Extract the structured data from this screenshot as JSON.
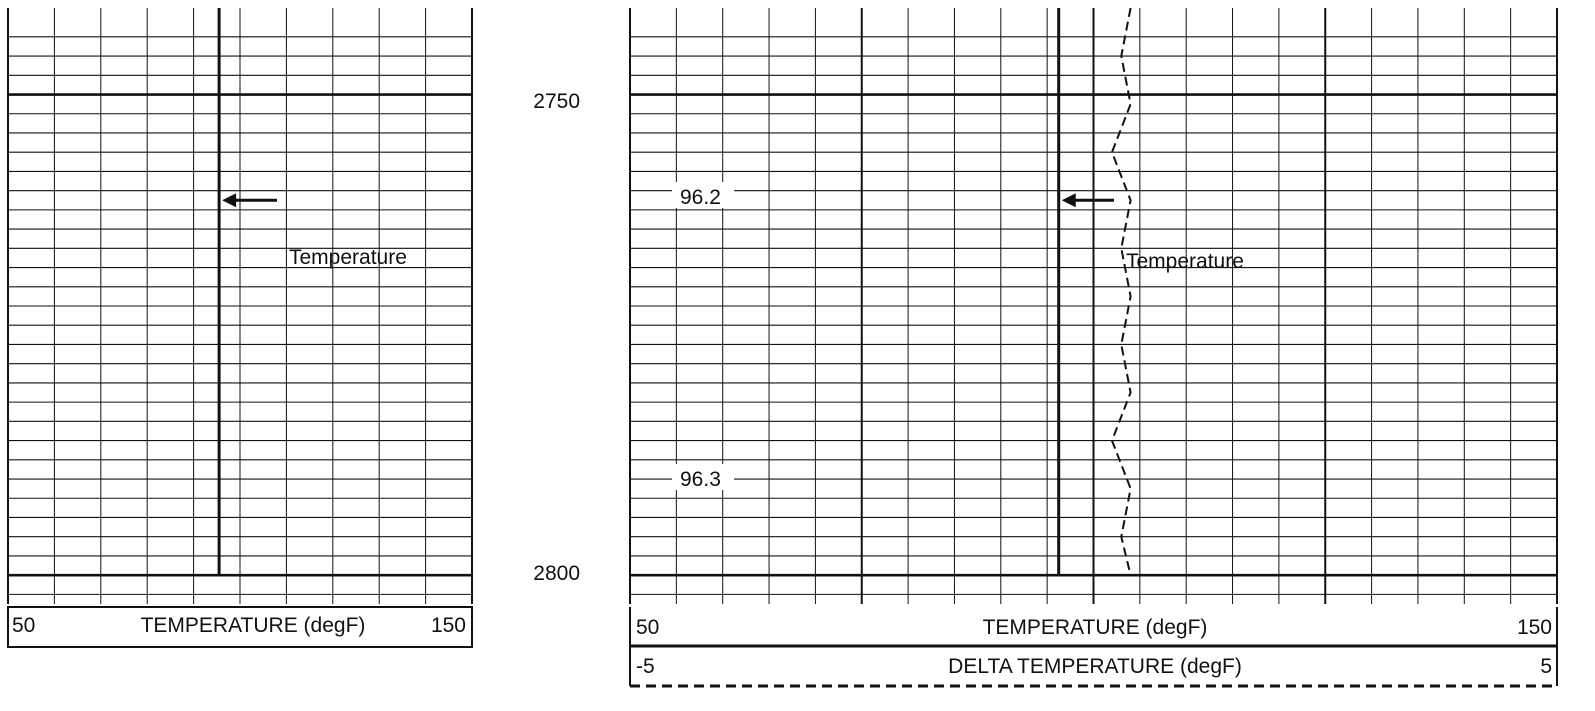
{
  "chart_data": [
    {
      "type": "line",
      "title": "",
      "depth_range": [
        2741,
        2803
      ],
      "scales": [
        {
          "label": "TEMPERATURE (degF)",
          "min": 50,
          "max": 150,
          "min_label": "50",
          "max_label": "150",
          "line_style": "solid"
        }
      ],
      "series": [
        {
          "name": "Temperature",
          "scale": 0,
          "x": [
            95.5,
            95.5
          ],
          "y": [
            2741,
            2800
          ]
        }
      ],
      "annotations": [
        {
          "text": "Temperature",
          "arrow_to_series": 0,
          "depth": 2761
        }
      ],
      "grid": true
    },
    {
      "type": "line",
      "title": "",
      "depth_range": [
        2741,
        2803
      ],
      "scales": [
        {
          "label": "TEMPERATURE (degF)",
          "min": 50,
          "max": 150,
          "min_label": "50",
          "max_label": "150",
          "line_style": "solid"
        },
        {
          "label": "DELTA TEMPERATURE (degF)",
          "min": -5,
          "max": 5,
          "min_label": "-5",
          "max_label": "5",
          "line_style": "dashed"
        }
      ],
      "series": [
        {
          "name": "Temperature",
          "scale": 0,
          "x": [
            96.25,
            96.25
          ],
          "y": [
            2741,
            2800
          ]
        },
        {
          "name": "",
          "scale": 1,
          "style": "dashed",
          "x": [
            0.4,
            0.3,
            0.4,
            0.2,
            0.4,
            0.3,
            0.4,
            0.3,
            0.4,
            0.2,
            0.4,
            0.3,
            0.4
          ],
          "y": [
            2741,
            2746,
            2751,
            2756,
            2761,
            2766,
            2771,
            2776,
            2781,
            2786,
            2791,
            2796,
            2800
          ]
        }
      ],
      "annotations": [
        {
          "text": "Temperature",
          "arrow_to_series": 0,
          "depth": 2761
        }
      ]
    }
  ],
  "track1": {
    "header": {
      "min": "50",
      "label": "TEMPERATURE (degF)",
      "max": "150"
    },
    "annotation": "Temperature"
  },
  "track2": {
    "header1": {
      "min": "50",
      "label": "TEMPERATURE (degF)",
      "max": "150"
    },
    "header2": {
      "min": "-5",
      "label": "DELTA TEMPERATURE (degF)",
      "max": "5"
    },
    "annotation": "Temperature",
    "side_labels": [
      "96.2",
      "96.3"
    ]
  },
  "depth_labels": [
    "2750",
    "2800"
  ]
}
